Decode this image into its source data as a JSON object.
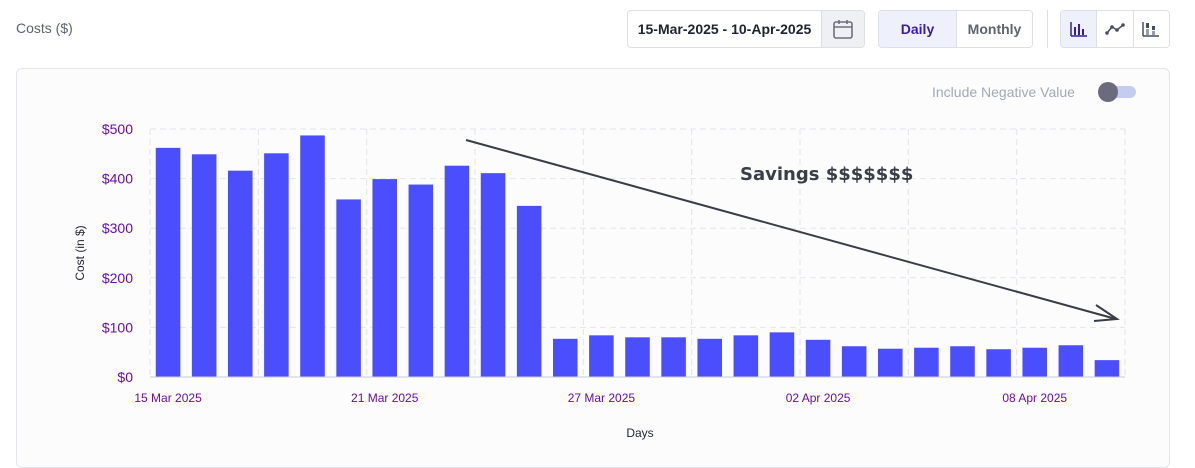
{
  "header": {
    "title": "Costs ($)",
    "date_range": "15-Mar-2025 - 10-Apr-2025",
    "granularity": {
      "daily": "Daily",
      "monthly": "Monthly",
      "selected": "Daily"
    },
    "view_icons": [
      "bar-chart-icon",
      "line-chart-icon",
      "stacked-bar-icon"
    ]
  },
  "controls": {
    "include_negative_label": "Include Negative Value",
    "include_negative_on": false
  },
  "annotation": {
    "text": "Savings $$$$$$$"
  },
  "colors": {
    "bar": "#4b4efc",
    "axis_text": "#6a0dad",
    "accent": "#3c1aa8"
  },
  "chart_data": {
    "type": "bar",
    "title": "",
    "xlabel": "Days",
    "ylabel": "Cost (in $)",
    "ylim": [
      0,
      500
    ],
    "yticks": [
      "$0",
      "$100",
      "$200",
      "$300",
      "$400",
      "$500"
    ],
    "grid": true,
    "categories": [
      "15 Mar 2025",
      "16 Mar 2025",
      "17 Mar 2025",
      "18 Mar 2025",
      "19 Mar 2025",
      "20 Mar 2025",
      "21 Mar 2025",
      "22 Mar 2025",
      "23 Mar 2025",
      "24 Mar 2025",
      "25 Mar 2025",
      "26 Mar 2025",
      "27 Mar 2025",
      "28 Mar 2025",
      "29 Mar 2025",
      "30 Mar 2025",
      "31 Mar 2025",
      "01 Apr 2025",
      "02 Apr 2025",
      "03 Apr 2025",
      "04 Apr 2025",
      "05 Apr 2025",
      "06 Apr 2025",
      "07 Apr 2025",
      "08 Apr 2025",
      "09 Apr 2025",
      "10 Apr 2025"
    ],
    "xtick_labels": [
      "15 Mar 2025",
      "21 Mar 2025",
      "27 Mar 2025",
      "02 Apr 2025",
      "08 Apr 2025"
    ],
    "values": [
      462,
      449,
      416,
      451,
      487,
      358,
      399,
      388,
      426,
      411,
      345,
      77,
      84,
      80,
      80,
      77,
      84,
      90,
      75,
      62,
      57,
      59,
      62,
      56,
      59,
      64,
      34
    ]
  }
}
